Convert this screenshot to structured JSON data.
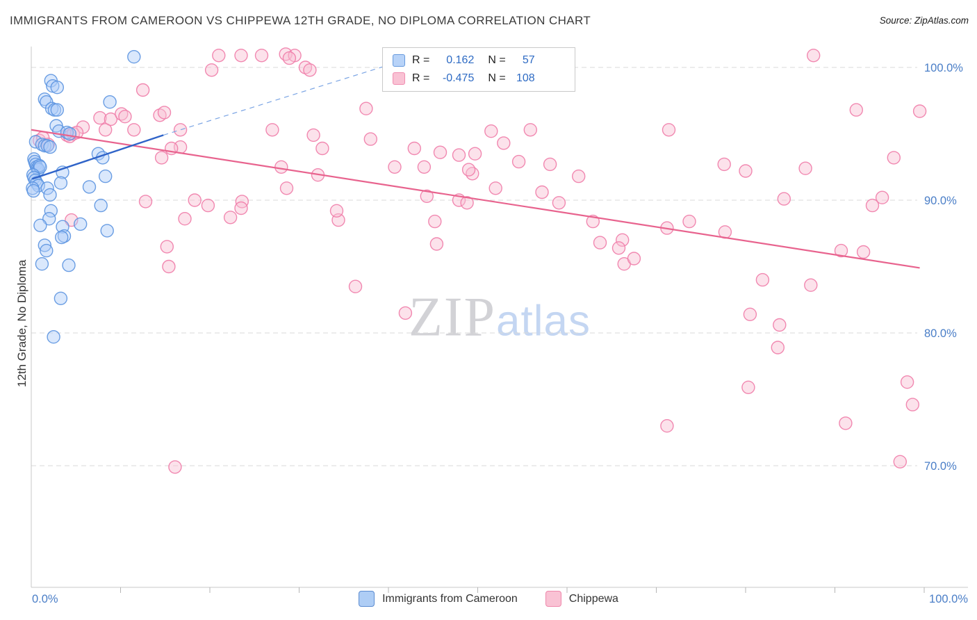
{
  "header": {
    "title": "IMMIGRANTS FROM CAMEROON VS CHIPPEWA 12TH GRADE, NO DIPLOMA CORRELATION CHART",
    "source": "Source: ZipAtlas.com"
  },
  "watermark": {
    "zip": "ZIP",
    "atlas": "atlas"
  },
  "colors": {
    "blue_stroke": "#5b93e0",
    "blue_fill": "#aecdf8",
    "pink_stroke": "#f07ca8",
    "pink_fill": "#f9bed3",
    "trend_blue": "#2f63c8",
    "trend_pink": "#e8638e",
    "axis_label_blue": "#4a7ec7",
    "grid": "#d9d9d9"
  },
  "chart_data": {
    "type": "scatter",
    "title": "IMMIGRANTS FROM CAMEROON VS CHIPPEWA 12TH GRADE, NO DIPLOMA CORRELATION CHART",
    "ylabel": "12th Grade, No Diploma",
    "x_axis": {
      "left_label": "0.0%",
      "right_label": "100.0%",
      "min": 0,
      "max": 100
    },
    "y_axis": {
      "min": 60,
      "max": 101.5,
      "ticks": [
        {
          "v": 100,
          "label": "100.0%"
        },
        {
          "v": 90,
          "label": "90.0%"
        },
        {
          "v": 80,
          "label": "80.0%"
        },
        {
          "v": 70,
          "label": "70.0%"
        }
      ]
    },
    "legend_box": {
      "rows": [
        {
          "r_label": "R =",
          "r": "0.162",
          "n_label": "N =",
          "n": "57"
        },
        {
          "r_label": "R =",
          "r": "-0.475",
          "n_label": "N =",
          "n": "108"
        }
      ]
    },
    "series": [
      {
        "name": "Immigrants from Cameroon",
        "R": 0.162,
        "N": 57,
        "trend": [
          [
            0.1,
            91.6
          ],
          [
            14.8,
            94.9
          ]
        ],
        "trend_ext": [
          [
            14.8,
            94.9
          ],
          [
            40.1,
            100.2
          ]
        ],
        "points": [
          [
            11.5,
            100.8
          ],
          [
            2.2,
            99.0
          ],
          [
            2.4,
            98.6
          ],
          [
            2.9,
            98.5
          ],
          [
            1.5,
            97.6
          ],
          [
            1.7,
            97.4
          ],
          [
            2.3,
            96.9
          ],
          [
            2.6,
            96.8
          ],
          [
            2.9,
            96.8
          ],
          [
            8.8,
            97.4
          ],
          [
            2.8,
            95.6
          ],
          [
            3.1,
            95.2
          ],
          [
            4.0,
            95.1
          ],
          [
            4.3,
            95.0
          ],
          [
            0.5,
            94.4
          ],
          [
            1.2,
            94.2
          ],
          [
            1.5,
            94.1
          ],
          [
            1.8,
            94.1
          ],
          [
            2.1,
            94.0
          ],
          [
            0.3,
            93.1
          ],
          [
            0.4,
            92.9
          ],
          [
            0.5,
            92.7
          ],
          [
            0.6,
            92.5
          ],
          [
            0.7,
            92.4
          ],
          [
            0.8,
            92.3
          ],
          [
            0.9,
            92.6
          ],
          [
            1.0,
            92.5
          ],
          [
            0.2,
            91.9
          ],
          [
            0.3,
            91.7
          ],
          [
            0.45,
            91.5
          ],
          [
            0.6,
            91.3
          ],
          [
            0.8,
            91.1
          ],
          [
            0.15,
            90.9
          ],
          [
            0.25,
            90.7
          ],
          [
            1.8,
            90.9
          ],
          [
            2.1,
            90.4
          ],
          [
            3.5,
            92.1
          ],
          [
            3.3,
            91.3
          ],
          [
            7.5,
            93.5
          ],
          [
            8.0,
            93.2
          ],
          [
            8.3,
            91.8
          ],
          [
            6.5,
            91.0
          ],
          [
            7.8,
            89.6
          ],
          [
            2.2,
            89.2
          ],
          [
            2.0,
            88.6
          ],
          [
            1.0,
            88.1
          ],
          [
            3.5,
            88.0
          ],
          [
            3.7,
            87.3
          ],
          [
            3.4,
            87.2
          ],
          [
            5.5,
            88.2
          ],
          [
            8.5,
            87.7
          ],
          [
            1.5,
            86.6
          ],
          [
            1.7,
            86.2
          ],
          [
            1.2,
            85.2
          ],
          [
            4.2,
            85.1
          ],
          [
            3.3,
            82.6
          ],
          [
            2.5,
            79.7
          ]
        ]
      },
      {
        "name": "Chippewa",
        "R": -0.475,
        "N": 108,
        "trend": [
          [
            0,
            95.3
          ],
          [
            99.5,
            84.9
          ]
        ],
        "points": [
          [
            21.0,
            100.9
          ],
          [
            23.5,
            100.9
          ],
          [
            25.8,
            100.9
          ],
          [
            28.5,
            101.0
          ],
          [
            29.5,
            100.9
          ],
          [
            28.9,
            100.7
          ],
          [
            87.6,
            100.9
          ],
          [
            20.2,
            99.8
          ],
          [
            30.7,
            100.0
          ],
          [
            31.2,
            99.8
          ],
          [
            12.5,
            98.3
          ],
          [
            37.5,
            96.9
          ],
          [
            92.4,
            96.8
          ],
          [
            99.5,
            96.7
          ],
          [
            5.8,
            95.5
          ],
          [
            7.7,
            96.2
          ],
          [
            8.9,
            96.1
          ],
          [
            14.4,
            96.4
          ],
          [
            14.9,
            96.6
          ],
          [
            10.1,
            96.5
          ],
          [
            10.5,
            96.3
          ],
          [
            8.3,
            95.3
          ],
          [
            11.5,
            95.3
          ],
          [
            16.7,
            95.3
          ],
          [
            0.9,
            94.5
          ],
          [
            1.3,
            94.7
          ],
          [
            1.9,
            94.2
          ],
          [
            4.0,
            94.9
          ],
          [
            4.3,
            94.8
          ],
          [
            4.7,
            95.0
          ],
          [
            5.1,
            95.1
          ],
          [
            27.0,
            95.3
          ],
          [
            31.6,
            94.9
          ],
          [
            16.7,
            94.0
          ],
          [
            14.6,
            93.2
          ],
          [
            15.7,
            93.9
          ],
          [
            51.5,
            95.2
          ],
          [
            55.9,
            95.3
          ],
          [
            71.4,
            95.3
          ],
          [
            52.9,
            94.3
          ],
          [
            42.9,
            93.9
          ],
          [
            45.8,
            93.6
          ],
          [
            47.9,
            93.4
          ],
          [
            49.7,
            93.5
          ],
          [
            54.6,
            92.9
          ],
          [
            58.1,
            92.7
          ],
          [
            77.6,
            92.7
          ],
          [
            80.0,
            92.2
          ],
          [
            96.6,
            93.2
          ],
          [
            86.7,
            92.4
          ],
          [
            40.7,
            92.5
          ],
          [
            44.0,
            92.5
          ],
          [
            49.4,
            92.0
          ],
          [
            28.0,
            92.5
          ],
          [
            32.1,
            91.9
          ],
          [
            32.6,
            93.9
          ],
          [
            28.6,
            90.9
          ],
          [
            12.8,
            89.9
          ],
          [
            18.3,
            90.0
          ],
          [
            19.8,
            89.6
          ],
          [
            23.6,
            89.9
          ],
          [
            23.5,
            89.4
          ],
          [
            47.9,
            90.0
          ],
          [
            48.8,
            89.8
          ],
          [
            59.1,
            89.8
          ],
          [
            84.3,
            90.1
          ],
          [
            94.2,
            89.6
          ],
          [
            95.3,
            90.2
          ],
          [
            4.5,
            88.5
          ],
          [
            17.2,
            88.6
          ],
          [
            22.3,
            88.7
          ],
          [
            34.4,
            88.5
          ],
          [
            45.2,
            88.4
          ],
          [
            62.9,
            88.4
          ],
          [
            71.2,
            87.9
          ],
          [
            73.7,
            88.4
          ],
          [
            77.7,
            87.6
          ],
          [
            63.7,
            86.8
          ],
          [
            66.2,
            87.0
          ],
          [
            15.2,
            86.5
          ],
          [
            45.4,
            86.7
          ],
          [
            65.8,
            86.4
          ],
          [
            90.7,
            86.2
          ],
          [
            93.2,
            86.1
          ],
          [
            15.4,
            85.0
          ],
          [
            66.4,
            85.2
          ],
          [
            67.5,
            85.6
          ],
          [
            81.9,
            84.0
          ],
          [
            87.3,
            83.6
          ],
          [
            36.3,
            83.5
          ],
          [
            41.9,
            81.5
          ],
          [
            80.5,
            81.4
          ],
          [
            83.8,
            80.6
          ],
          [
            83.6,
            78.9
          ],
          [
            80.3,
            75.9
          ],
          [
            98.1,
            76.3
          ],
          [
            98.7,
            74.6
          ],
          [
            91.2,
            73.2
          ],
          [
            71.2,
            73.0
          ],
          [
            16.1,
            69.9
          ],
          [
            97.3,
            70.3
          ],
          [
            38.0,
            94.6
          ],
          [
            52.0,
            90.9
          ],
          [
            57.2,
            90.6
          ],
          [
            44.3,
            90.3
          ],
          [
            49.0,
            92.3
          ],
          [
            61.3,
            91.8
          ],
          [
            34.2,
            89.2
          ]
        ]
      }
    ]
  }
}
